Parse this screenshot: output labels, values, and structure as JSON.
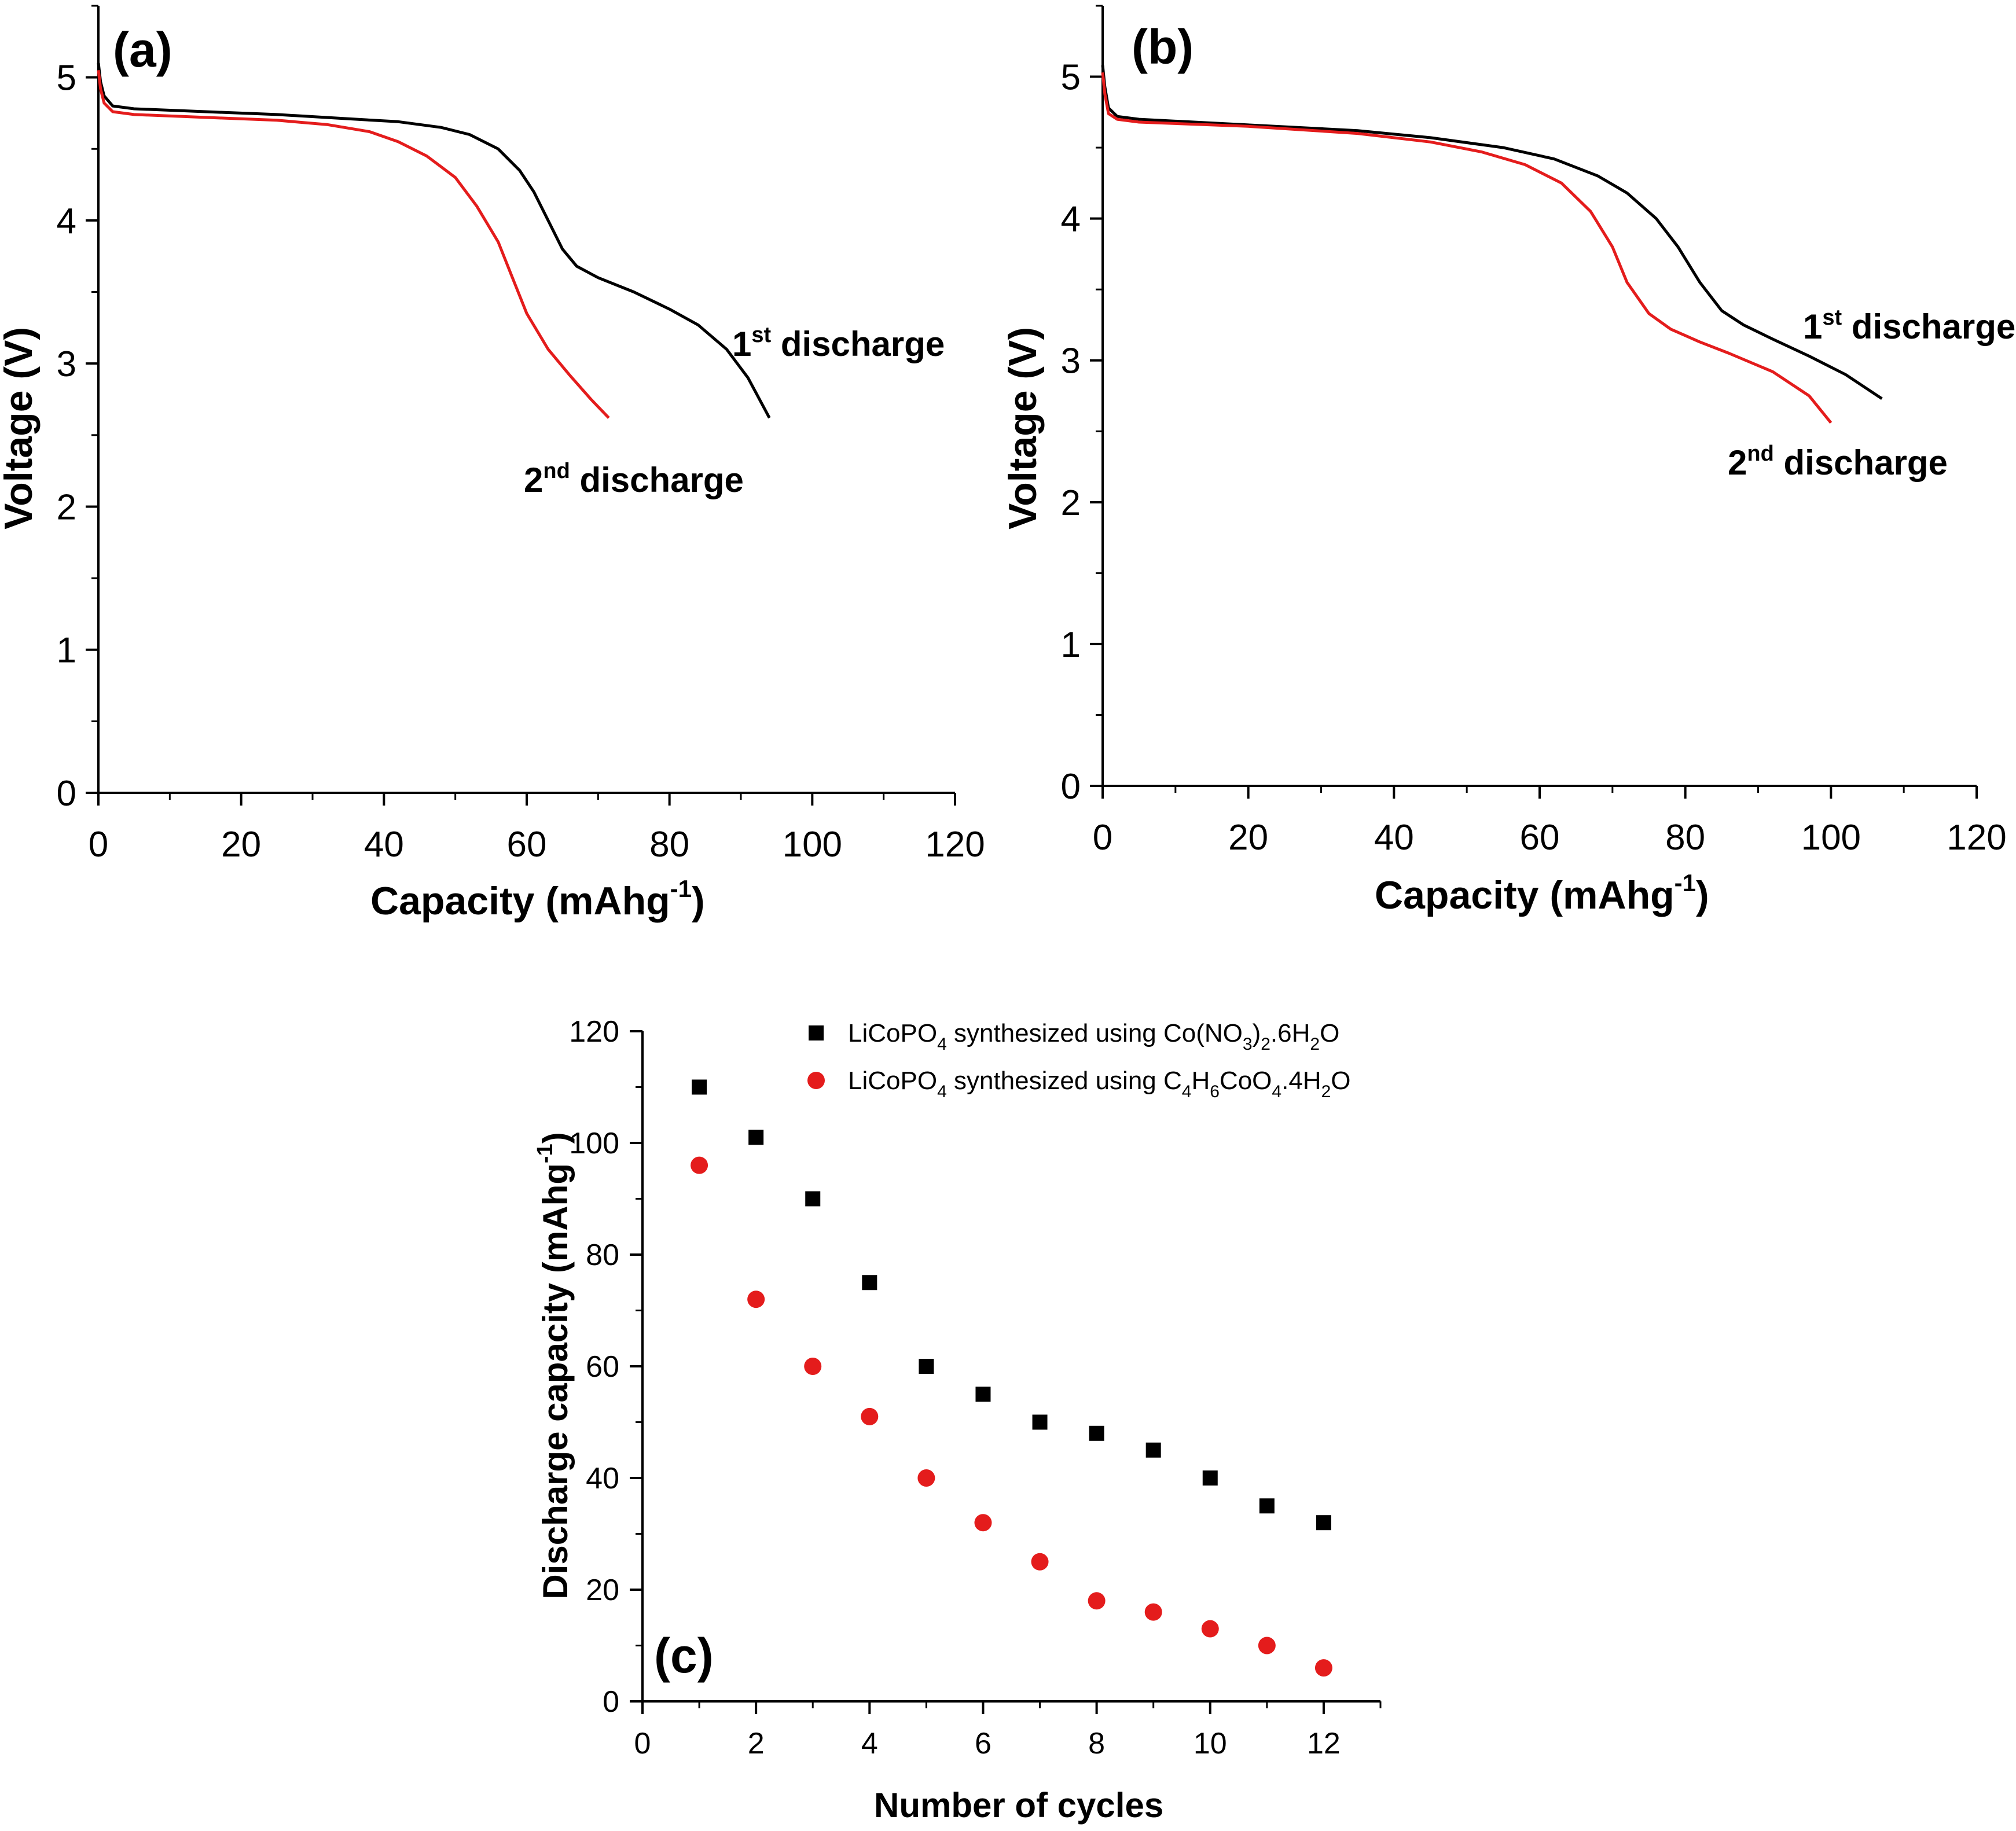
{
  "colors": {
    "first": "#000000",
    "second": "#e41c1c",
    "axes": "#000000"
  },
  "chart_data": [
    {
      "type": "line",
      "panel": "(a)",
      "xlabel": "Capacity (mAhg",
      "xlabel_sup": "-1",
      "xlabel_end": ")",
      "ylabel": "Voltage (V)",
      "xlim": [
        0,
        120
      ],
      "ylim": [
        0,
        5.5
      ],
      "xticks": [
        0,
        20,
        40,
        60,
        80,
        100,
        120
      ],
      "yticks": [
        0,
        1,
        2,
        3,
        4,
        5
      ],
      "series": [
        {
          "label_main": "1",
          "label_sup": "st",
          "label_rest": " discharge",
          "color": "#000000",
          "points": [
            [
              0,
              5.1
            ],
            [
              0.3,
              4.97
            ],
            [
              0.8,
              4.87
            ],
            [
              2,
              4.8
            ],
            [
              5,
              4.78
            ],
            [
              15,
              4.76
            ],
            [
              25,
              4.74
            ],
            [
              35,
              4.71
            ],
            [
              42,
              4.69
            ],
            [
              48,
              4.65
            ],
            [
              52,
              4.6
            ],
            [
              56,
              4.5
            ],
            [
              59,
              4.35
            ],
            [
              61,
              4.2
            ],
            [
              63,
              4.0
            ],
            [
              65,
              3.8
            ],
            [
              67,
              3.68
            ],
            [
              70,
              3.6
            ],
            [
              75,
              3.5
            ],
            [
              80,
              3.38
            ],
            [
              84,
              3.27
            ],
            [
              88,
              3.1
            ],
            [
              91,
              2.9
            ],
            [
              94,
              2.62
            ]
          ]
        },
        {
          "label_main": "2",
          "label_sup": "nd",
          "label_rest": " discharge",
          "color": "#e41c1c",
          "points": [
            [
              0,
              5.05
            ],
            [
              0.3,
              4.92
            ],
            [
              0.8,
              4.82
            ],
            [
              2,
              4.76
            ],
            [
              5,
              4.74
            ],
            [
              15,
              4.72
            ],
            [
              25,
              4.7
            ],
            [
              32,
              4.67
            ],
            [
              38,
              4.62
            ],
            [
              42,
              4.55
            ],
            [
              46,
              4.45
            ],
            [
              50,
              4.3
            ],
            [
              53,
              4.1
            ],
            [
              56,
              3.85
            ],
            [
              58,
              3.6
            ],
            [
              60,
              3.35
            ],
            [
              63,
              3.1
            ],
            [
              66,
              2.92
            ],
            [
              69,
              2.75
            ],
            [
              71.5,
              2.62
            ]
          ]
        }
      ]
    },
    {
      "type": "line",
      "panel": "(b)",
      "xlabel": "Capacity (mAhg",
      "xlabel_sup": "-1",
      "xlabel_end": ")",
      "ylabel": "Voltage (V)",
      "xlim": [
        0,
        120
      ],
      "ylim": [
        0,
        5.5
      ],
      "xticks": [
        0,
        20,
        40,
        60,
        80,
        100,
        120
      ],
      "yticks": [
        0,
        1,
        2,
        3,
        4,
        5
      ],
      "series": [
        {
          "label_main": "1",
          "label_sup": "st",
          "label_rest": " discharge",
          "color": "#000000",
          "points": [
            [
              0,
              5.08
            ],
            [
              0.3,
              4.93
            ],
            [
              0.8,
              4.78
            ],
            [
              2,
              4.72
            ],
            [
              5,
              4.7
            ],
            [
              20,
              4.66
            ],
            [
              35,
              4.62
            ],
            [
              45,
              4.57
            ],
            [
              55,
              4.5
            ],
            [
              62,
              4.42
            ],
            [
              68,
              4.3
            ],
            [
              72,
              4.18
            ],
            [
              76,
              4.0
            ],
            [
              79,
              3.8
            ],
            [
              82,
              3.55
            ],
            [
              85,
              3.35
            ],
            [
              88,
              3.25
            ],
            [
              92,
              3.15
            ],
            [
              97,
              3.03
            ],
            [
              102,
              2.9
            ],
            [
              107,
              2.73
            ]
          ]
        },
        {
          "label_main": "2",
          "label_sup": "nd",
          "label_rest": " discharge",
          "color": "#e41c1c",
          "points": [
            [
              0,
              5.03
            ],
            [
              0.3,
              4.88
            ],
            [
              0.8,
              4.74
            ],
            [
              2,
              4.7
            ],
            [
              5,
              4.68
            ],
            [
              20,
              4.65
            ],
            [
              35,
              4.6
            ],
            [
              45,
              4.54
            ],
            [
              52,
              4.47
            ],
            [
              58,
              4.38
            ],
            [
              63,
              4.25
            ],
            [
              67,
              4.05
            ],
            [
              70,
              3.8
            ],
            [
              72,
              3.55
            ],
            [
              75,
              3.33
            ],
            [
              78,
              3.22
            ],
            [
              82,
              3.13
            ],
            [
              86,
              3.05
            ],
            [
              92,
              2.92
            ],
            [
              97,
              2.75
            ],
            [
              100,
              2.56
            ]
          ]
        }
      ]
    },
    {
      "type": "scatter",
      "panel": "(c)",
      "xlabel": "Number of cycles",
      "ylabel": "Discharge capacity (mAhg",
      "ylabel_sup": "-1",
      "ylabel_end": ")",
      "xlim": [
        0,
        13
      ],
      "ylim": [
        0,
        120
      ],
      "xticks": [
        0,
        2,
        4,
        6,
        8,
        10,
        12
      ],
      "yticks": [
        0,
        20,
        40,
        60,
        80,
        100,
        120
      ],
      "legend_position": "top-right",
      "series": [
        {
          "marker": "square",
          "color": "#000000",
          "legend": [
            "LiCoPO",
            "4",
            " synthesized using Co(NO",
            "3",
            ")",
            "2",
            ".6H",
            "2",
            "O"
          ],
          "x": [
            1,
            2,
            3,
            4,
            5,
            6,
            7,
            8,
            9,
            10,
            11,
            12
          ],
          "y": [
            110,
            101,
            90,
            75,
            60,
            55,
            50,
            48,
            45,
            40,
            35,
            32
          ]
        },
        {
          "marker": "circle",
          "color": "#e41c1c",
          "legend": [
            "LiCoPO",
            "4",
            " synthesized using C",
            "4",
            "H",
            "6",
            "CoO",
            "4",
            ".4H",
            "2",
            "O"
          ],
          "x": [
            1,
            2,
            3,
            4,
            5,
            6,
            7,
            8,
            9,
            10,
            11,
            12
          ],
          "y": [
            96,
            72,
            60,
            51,
            40,
            32,
            25,
            18,
            16,
            13,
            10,
            6
          ]
        }
      ]
    }
  ]
}
